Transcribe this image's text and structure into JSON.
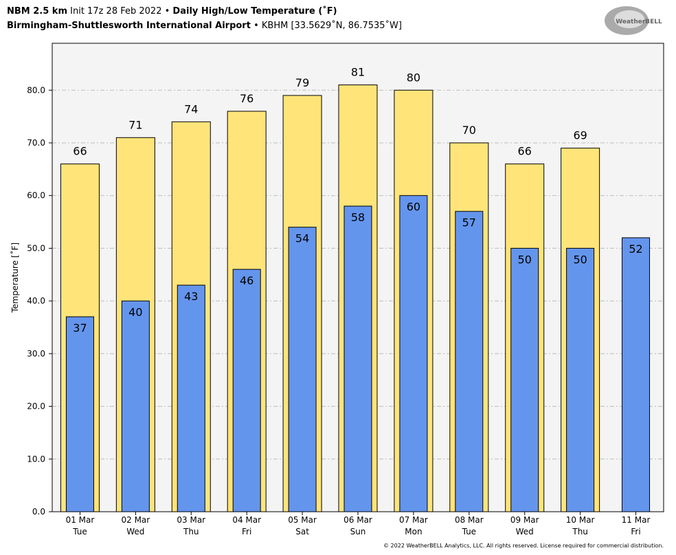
{
  "chart_data": {
    "type": "bar",
    "title": {
      "model": "NBM 2.5 km",
      "init": "Init 17z 28 Feb 2022",
      "separator": "•",
      "product": "Daily High/Low Temperature (˚F)"
    },
    "subtitle": {
      "station": "Birmingham-Shuttlesworth International Airport",
      "location": "KBHM [33.5629˚N, 86.7535˚W]"
    },
    "logo_text": "WeatherBELL",
    "footer": "© 2022 WeatherBELL Analytics, LLC. All rights reserved. License required for commercial distribution.",
    "y_label": "Temperature [˚F]",
    "categories": [
      {
        "date": "01 Mar",
        "day": "Tue"
      },
      {
        "date": "02 Mar",
        "day": "Wed"
      },
      {
        "date": "03 Mar",
        "day": "Thu"
      },
      {
        "date": "04 Mar",
        "day": "Fri"
      },
      {
        "date": "05 Mar",
        "day": "Sat"
      },
      {
        "date": "06 Mar",
        "day": "Sun"
      },
      {
        "date": "07 Mar",
        "day": "Mon"
      },
      {
        "date": "08 Mar",
        "day": "Tue"
      },
      {
        "date": "09 Mar",
        "day": "Wed"
      },
      {
        "date": "10 Mar",
        "day": "Thu"
      },
      {
        "date": "11 Mar",
        "day": "Fri"
      }
    ],
    "series": [
      {
        "color": "#ffe47a",
        "values": [
          66,
          71,
          74,
          76,
          79,
          81,
          80,
          70,
          66,
          69,
          null
        ]
      },
      {
        "color": "#6495ed",
        "values": [
          37,
          40,
          43,
          46,
          54,
          58,
          60,
          57,
          50,
          50,
          52
        ]
      }
    ],
    "ylim": [
      0,
      88.9
    ],
    "yticks": [
      {
        "value": 0,
        "label": "0.0"
      },
      {
        "value": 10,
        "label": "10.0"
      },
      {
        "value": 20,
        "label": "20.0"
      },
      {
        "value": 30,
        "label": "30.0"
      },
      {
        "value": 40,
        "label": "40.0"
      },
      {
        "value": 50,
        "label": "50.0"
      },
      {
        "value": 60,
        "label": "60.0"
      },
      {
        "value": 70,
        "label": "70.0"
      },
      {
        "value": 80,
        "label": "80.0"
      }
    ],
    "grid": true
  }
}
